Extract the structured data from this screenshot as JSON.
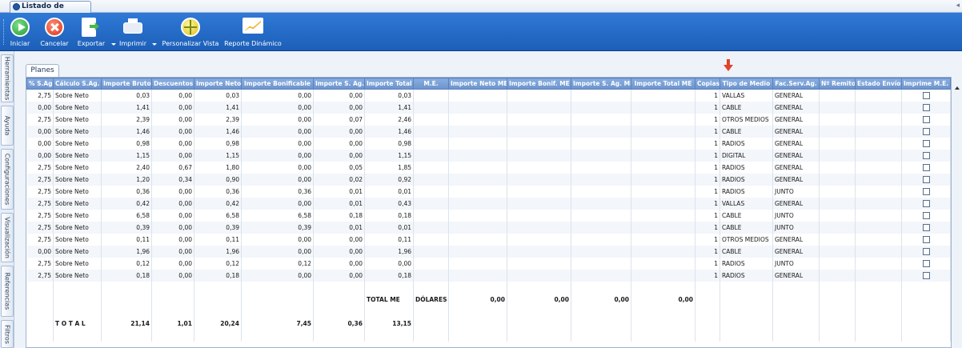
{
  "window": {
    "tab_title": "Listado de Pautas"
  },
  "toolbar": {
    "iniciar": "Iniciar",
    "cancelar": "Cancelar",
    "exportar": "Exportar",
    "imprimir": "Imprimir",
    "personalizar": "Personalizar Vista",
    "reporte": "Reporte Dinámico"
  },
  "side_tabs": [
    "Herramientas",
    "Ayuda",
    "Configuraciones",
    "Visualización",
    "Referencias",
    "Filtros"
  ],
  "grid_tab": "Planes",
  "columns": [
    "% S.Ag.",
    "Cálculo S.Ag.",
    "Importe Bruto",
    "Descuentos",
    "Importe Neto",
    "Importe Bonificable",
    "Importe S. Ag.",
    "Importe Total",
    "M.E.",
    "Importe Neto ME",
    "Importe Bonif. ME",
    "Importe S. Ag. ME",
    "Importe Total ME",
    "Copias",
    "Tipo de Medio",
    "Fac.Serv.Ag.",
    "Nº Remito",
    "Estado Envío",
    "Imprime M.E."
  ],
  "rows": [
    [
      "2,75",
      "Sobre Neto",
      "0,03",
      "0,00",
      "0,03",
      "0,00",
      "0,00",
      "0,03",
      "1",
      "VALLAS",
      "GENERAL"
    ],
    [
      "0,00",
      "Sobre Neto",
      "1,41",
      "0,00",
      "1,41",
      "0,00",
      "0,00",
      "1,41",
      "1",
      "CABLE",
      "GENERAL"
    ],
    [
      "2,75",
      "Sobre Neto",
      "2,39",
      "0,00",
      "2,39",
      "0,00",
      "0,07",
      "2,46",
      "1",
      "OTROS MEDIOS",
      "GENERAL"
    ],
    [
      "0,00",
      "Sobre Neto",
      "1,46",
      "0,00",
      "1,46",
      "0,00",
      "0,00",
      "1,46",
      "1",
      "CABLE",
      "GENERAL"
    ],
    [
      "0,00",
      "Sobre Neto",
      "0,98",
      "0,00",
      "0,98",
      "0,00",
      "0,00",
      "0,98",
      "1",
      "RADIOS",
      "GENERAL"
    ],
    [
      "0,00",
      "Sobre Neto",
      "1,15",
      "0,00",
      "1,15",
      "0,00",
      "0,00",
      "1,15",
      "1",
      "DIGITAL",
      "GENERAL"
    ],
    [
      "2,75",
      "Sobre Neto",
      "2,40",
      "0,67",
      "1,80",
      "0,00",
      "0,05",
      "1,85",
      "1",
      "RADIOS",
      "GENERAL"
    ],
    [
      "2,75",
      "Sobre Neto",
      "1,20",
      "0,34",
      "0,90",
      "0,00",
      "0,02",
      "0,92",
      "1",
      "RADIOS",
      "GENERAL"
    ],
    [
      "2,75",
      "Sobre Neto",
      "0,36",
      "0,00",
      "0,36",
      "0,36",
      "0,01",
      "0,01",
      "1",
      "RADIOS",
      "JUNTO"
    ],
    [
      "2,75",
      "Sobre Neto",
      "0,42",
      "0,00",
      "0,42",
      "0,00",
      "0,01",
      "0,43",
      "1",
      "VALLAS",
      "GENERAL"
    ],
    [
      "2,75",
      "Sobre Neto",
      "6,58",
      "0,00",
      "6,58",
      "6,58",
      "0,18",
      "0,18",
      "1",
      "CABLE",
      "JUNTO"
    ],
    [
      "2,75",
      "Sobre Neto",
      "0,39",
      "0,00",
      "0,39",
      "0,39",
      "0,01",
      "0,01",
      "1",
      "CABLE",
      "JUNTO"
    ],
    [
      "2,75",
      "Sobre Neto",
      "0,11",
      "0,00",
      "0,11",
      "0,00",
      "0,00",
      "0,11",
      "1",
      "OTROS MEDIOS",
      "GENERAL"
    ],
    [
      "0,00",
      "Sobre Neto",
      "1,96",
      "0,00",
      "1,96",
      "0,00",
      "0,00",
      "1,96",
      "1",
      "CABLE",
      "GENERAL"
    ],
    [
      "2,75",
      "Sobre Neto",
      "0,12",
      "0,00",
      "0,12",
      "0,12",
      "0,00",
      "0,00",
      "1",
      "RADIOS",
      "JUNTO"
    ],
    [
      "2,75",
      "Sobre Neto",
      "0,18",
      "0,00",
      "0,18",
      "0,00",
      "0,00",
      "0,18",
      "1",
      "RADIOS",
      "GENERAL"
    ]
  ],
  "total_me": {
    "label": "TOTAL ME",
    "currency": "DÓLARES",
    "neto": "0,00",
    "bonif": "0,00",
    "s_ag": "0,00",
    "total": "0,00"
  },
  "total": {
    "label": "T O T A L",
    "bruto": "21,14",
    "descuentos": "1,01",
    "neto": "20,24",
    "bonificable": "7,45",
    "s_ag": "0,36",
    "total": "13,15"
  }
}
